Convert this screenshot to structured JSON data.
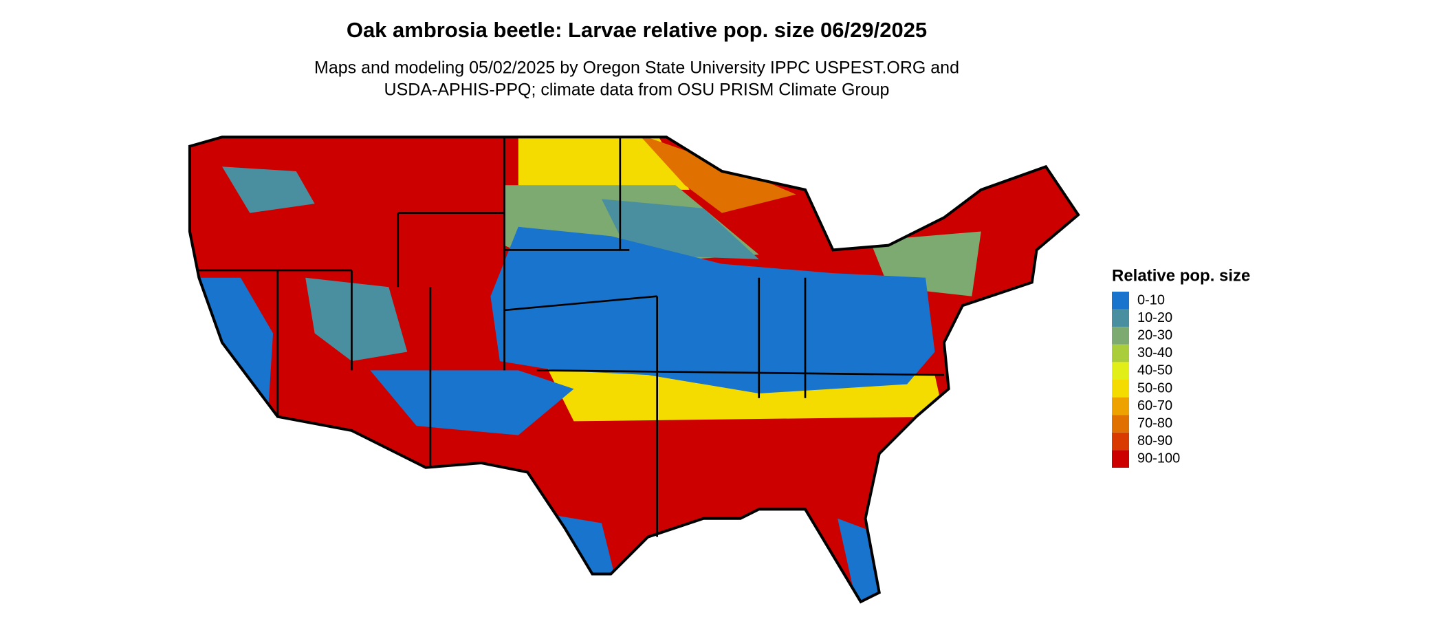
{
  "title": "Oak ambrosia beetle: Larvae relative pop. size 06/29/2025",
  "subtitle": [
    "Maps and modeling 05/02/2025 by Oregon State University IPPC USPEST.ORG and",
    "USDA-APHIS-PPQ; climate data from OSU PRISM Climate Group"
  ],
  "legend": {
    "title": "Relative pop. size",
    "items": [
      {
        "label": "0-10",
        "color": "#1874cd"
      },
      {
        "label": "10-20",
        "color": "#4a8f9f"
      },
      {
        "label": "20-30",
        "color": "#7caa70"
      },
      {
        "label": "30-40",
        "color": "#aacd3c"
      },
      {
        "label": "40-50",
        "color": "#e2ee18"
      },
      {
        "label": "50-60",
        "color": "#f5dc00"
      },
      {
        "label": "60-70",
        "color": "#eea200"
      },
      {
        "label": "70-80",
        "color": "#e07000"
      },
      {
        "label": "80-90",
        "color": "#d83a00"
      },
      {
        "label": "90-100",
        "color": "#cd0000"
      }
    ]
  }
}
